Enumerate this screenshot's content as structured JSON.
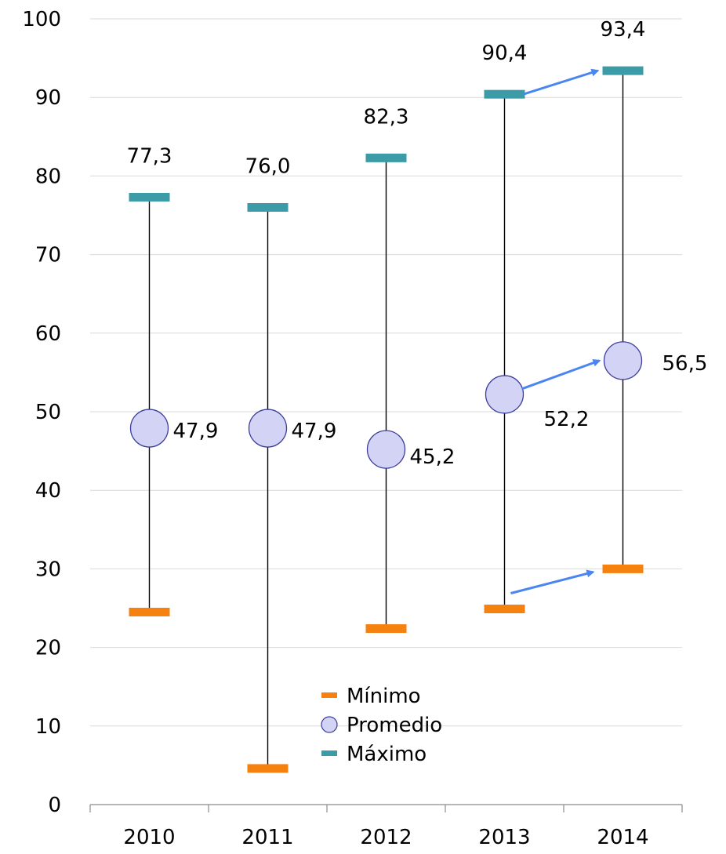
{
  "chart_data": {
    "type": "stock",
    "title": "",
    "xlabel": "",
    "ylabel": "",
    "categories": [
      "2010",
      "2011",
      "2012",
      "2013",
      "2014"
    ],
    "ylim": [
      0,
      100
    ],
    "yticks": [
      0,
      10,
      20,
      30,
      40,
      50,
      60,
      70,
      80,
      90,
      100
    ],
    "grid": true,
    "legend_position": "bottom-center",
    "series": [
      {
        "name": "Mínimo",
        "marker": "dash",
        "color": "#F5820E",
        "values": [
          24.5,
          4.6,
          22.4,
          24.9,
          30.0
        ]
      },
      {
        "name": "Promedio",
        "marker": "circle",
        "color": "#D3D3F5",
        "values": [
          47.9,
          47.9,
          45.2,
          52.2,
          56.5
        ],
        "labels": [
          "47,9",
          "47,9",
          "45,2",
          "52,2",
          "56,5"
        ]
      },
      {
        "name": "Máximo",
        "marker": "dash",
        "color": "#3B9BA6",
        "values": [
          77.3,
          76.0,
          82.3,
          90.4,
          93.4
        ],
        "labels": [
          "77,3",
          "76,0",
          "82,3",
          "90,4",
          "93,4"
        ]
      }
    ],
    "annotations": [
      {
        "type": "arrow",
        "from": {
          "category": "2013",
          "series": "Máximo"
        },
        "to": {
          "category": "2014",
          "series": "Máximo"
        },
        "color": "#4A86F0"
      },
      {
        "type": "arrow",
        "from": {
          "category": "2013",
          "series": "Promedio"
        },
        "to": {
          "category": "2014",
          "series": "Promedio"
        },
        "color": "#4A86F0"
      },
      {
        "type": "arrow",
        "from": {
          "category": "2013",
          "series": "Mínimo"
        },
        "to": {
          "category": "2014",
          "series": "Mínimo"
        },
        "color": "#4A86F0"
      }
    ]
  }
}
